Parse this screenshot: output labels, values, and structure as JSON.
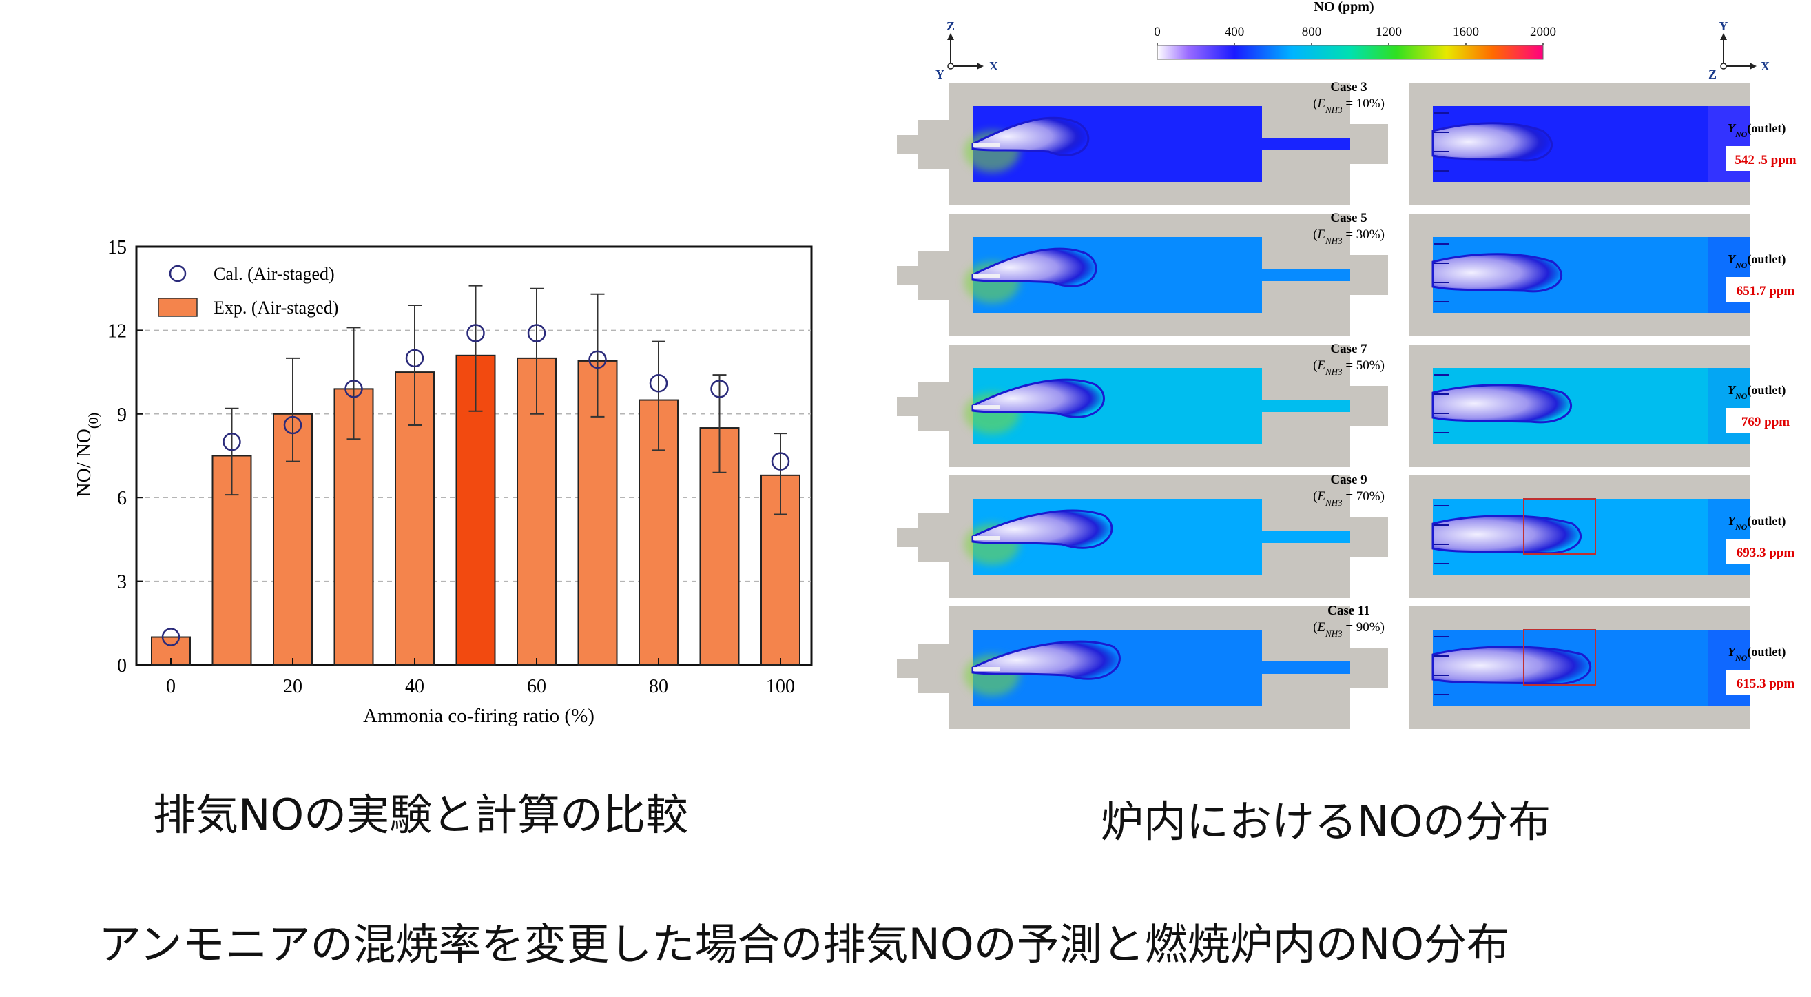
{
  "chart_data": [
    {
      "type": "bar",
      "title": "",
      "xlabel": "Ammonia co-firing ratio (%)",
      "ylabel": "NO/ NO",
      "ylabel_subscript": "(0)",
      "ylim": [
        0,
        15
      ],
      "yticks": [
        0,
        3,
        6,
        9,
        12,
        15
      ],
      "xticks": [
        0,
        20,
        40,
        60,
        80,
        100
      ],
      "grid": "dashed horizontal",
      "legend_position": "top-left",
      "legend": [
        {
          "label": "Cal. (Air-staged)",
          "marker": "open-circle",
          "color": "#2a2a7a"
        },
        {
          "label": "Exp. (Air-staged)",
          "marker": "bar",
          "color": "#f4844c"
        }
      ],
      "categories": [
        0,
        10,
        20,
        30,
        40,
        50,
        60,
        70,
        80,
        90,
        100
      ],
      "series": [
        {
          "name": "Exp. (Air-staged)",
          "values": [
            1.0,
            7.5,
            9.0,
            9.9,
            10.5,
            11.1,
            11.0,
            10.9,
            9.5,
            8.5,
            6.8
          ],
          "error_low": [
            1.0,
            6.1,
            7.3,
            8.1,
            8.6,
            9.1,
            9.0,
            8.9,
            7.7,
            6.9,
            5.4
          ],
          "error_high": [
            1.0,
            9.2,
            11.0,
            12.1,
            12.9,
            13.6,
            13.5,
            13.3,
            11.6,
            10.4,
            8.3
          ],
          "highlight_index": 5,
          "highlight_color": "#f24a10"
        },
        {
          "name": "Cal. (Air-staged)",
          "values": [
            1.0,
            8.0,
            8.6,
            9.9,
            11.0,
            11.9,
            11.9,
            10.95,
            10.1,
            9.9,
            7.3
          ]
        }
      ]
    },
    {
      "type": "heatmap",
      "colorbar": {
        "label": "NO (ppm)",
        "ticks": [
          "0",
          "400",
          "800",
          "1200",
          "1600",
          "2000"
        ],
        "range": [
          0,
          2000
        ]
      },
      "axes_left": {
        "up": "Z",
        "right": "X",
        "origin": "Y"
      },
      "axes_right": {
        "up": "Y",
        "right": "X",
        "origin": "Z"
      },
      "outlet_label": "(outlet)",
      "outlet_symbol": "Y",
      "outlet_symbol_sub": "NO",
      "cases": [
        {
          "name": "Case 3",
          "e_sym": "E",
          "e_sub": "NH3",
          "e_val": " = 10%)",
          "outlet": "542 .5 ppm",
          "no_base_ppm": 420
        },
        {
          "name": "Case 5",
          "e_sym": "E",
          "e_sub": "NH3",
          "e_val": " = 30%)",
          "outlet": "651.7 ppm",
          "no_base_ppm": 620
        },
        {
          "name": "Case 7",
          "e_sym": "E",
          "e_sub": "NH3",
          "e_val": " = 50%)",
          "outlet": "769 ppm",
          "no_base_ppm": 760
        },
        {
          "name": "Case 9",
          "e_sym": "E",
          "e_sub": "NH3",
          "e_val": " = 70%)",
          "outlet": "693.3 ppm",
          "no_base_ppm": 680
        },
        {
          "name": "Case 11",
          "e_sym": "E",
          "e_sub": "NH3",
          "e_val": " = 90%)",
          "outlet": "615.3 ppm",
          "no_base_ppm": 600
        }
      ]
    }
  ],
  "captions": {
    "left": "排気NOの実験と計算の比較",
    "right": "炉内におけるNOの分布",
    "bottom": "アンモニアの混焼率を変更した場合の排気NOの予測と燃焼炉内のNO分布"
  },
  "colors": {
    "bar": "#f4844c",
    "bar_highlight": "#f24a10",
    "marker": "#2a2a7a",
    "furnace_wall": "#c8c5bf",
    "outlet_value": "#e00000"
  }
}
